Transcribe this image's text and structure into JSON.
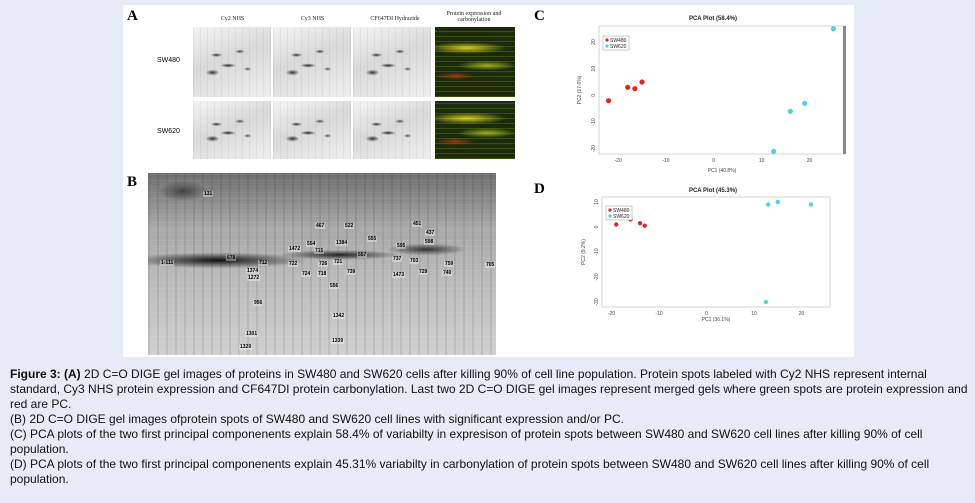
{
  "panelA": {
    "letter": "A",
    "headers": [
      "Cy2 NHS",
      "Cy3 NHS",
      "CF647DI Hydrazide",
      "Protein expression and carbonylation"
    ],
    "rows": [
      "SW480",
      "SW620"
    ]
  },
  "panelB": {
    "letter": "B",
    "spots": [
      "131",
      "1-111",
      "678",
      "712",
      "722",
      "1374",
      "1272",
      "956",
      "1301",
      "1329",
      "467",
      "522",
      "554",
      "555",
      "1472",
      "715",
      "724",
      "718",
      "726",
      "721",
      "739",
      "1339",
      "1384",
      "557",
      "556",
      "595",
      "737",
      "451",
      "437",
      "598",
      "705",
      "703",
      "740",
      "1473",
      "729",
      "759",
      "1342"
    ]
  },
  "panelC": {
    "letter": "C",
    "title": "PCA Plot (58.4%)",
    "xlabel": "PC1 (40.8%)",
    "ylabel": "PC2 (17.6%)",
    "xticks": [
      "-20",
      "-10",
      "0",
      "10",
      "20"
    ],
    "yticks": [
      "20",
      "10",
      "0",
      "-10",
      "-20"
    ],
    "legend": [
      "SW480",
      "SW620"
    ]
  },
  "panelD": {
    "letter": "D",
    "title": "PCA Plot (45.3%)",
    "xlabel": "PC1 (36.1%)",
    "ylabel": "PC2 (9.2%)",
    "xticks": [
      "-20",
      "-10",
      "0",
      "10",
      "20"
    ],
    "yticks": [
      "10",
      "0",
      "-10",
      "-20",
      "-30"
    ],
    "legend": [
      "SW480",
      "SW620"
    ]
  },
  "colors": {
    "sw480": "#e5261f",
    "sw620": "#4fd3e0"
  },
  "chart_data": [
    {
      "type": "scatter",
      "title": "PCA Plot (58.4%)",
      "xlabel": "PC1 (40.8%)",
      "ylabel": "PC2 (17.6%)",
      "xlim": [
        -24,
        27
      ],
      "ylim": [
        -22,
        26
      ],
      "legend_position": "top-left",
      "series": [
        {
          "name": "SW480",
          "points": [
            [
              -22,
              -2
            ],
            [
              -18,
              3
            ],
            [
              -16.5,
              2.5
            ],
            [
              -15,
              5
            ]
          ]
        },
        {
          "name": "SW620",
          "points": [
            [
              12.5,
              -21
            ],
            [
              16,
              -6
            ],
            [
              19,
              -3
            ],
            [
              25,
              25
            ]
          ]
        }
      ]
    },
    {
      "type": "scatter",
      "title": "PCA Plot (45.3%)",
      "xlabel": "PC1 (36.1%)",
      "ylabel": "PC2 (9.2%)",
      "xlim": [
        -22,
        26
      ],
      "ylim": [
        -32,
        12
      ],
      "legend_position": "top-left",
      "series": [
        {
          "name": "SW480",
          "points": [
            [
              -19,
              1
            ],
            [
              -16,
              3
            ],
            [
              -14,
              1.5
            ],
            [
              -13,
              0.5
            ]
          ]
        },
        {
          "name": "SW620",
          "points": [
            [
              12.5,
              -30
            ],
            [
              13,
              9
            ],
            [
              15,
              10
            ],
            [
              22,
              9
            ]
          ]
        }
      ]
    }
  ],
  "caption": {
    "fig_label": "Figure 3:",
    "a_label": "(A)",
    "a_text": " 2D C=O DIGE gel images of proteins in SW480 and SW620 cells after killing 90% of cell line population. Protein spots labeled with Cy2 NHS represent internal standard, Cy3 NHS protein expression and CF647DI protein carbonylation. Last two 2D C=O DIGE gel images represent merged gels where green spots are protein expression and red are PC.",
    "b_text": "(B) 2D C=O DIGE gel images ofprotein spots of SW480 and SW620 cell lines with significant expression and/or PC.",
    "c_text": "(C) PCA plots of the two first principal componenents explain 58.4% of variabilty in expresison of protein spots between SW480 and SW620 cell lines after killing 90% of cell population.",
    "d_text": "(D) PCA plots of the two first principal componenents explain 45.31% variabilty in carbonylation of protein spots between SW480 and SW620 cell lines after killing 90% of cell population."
  }
}
